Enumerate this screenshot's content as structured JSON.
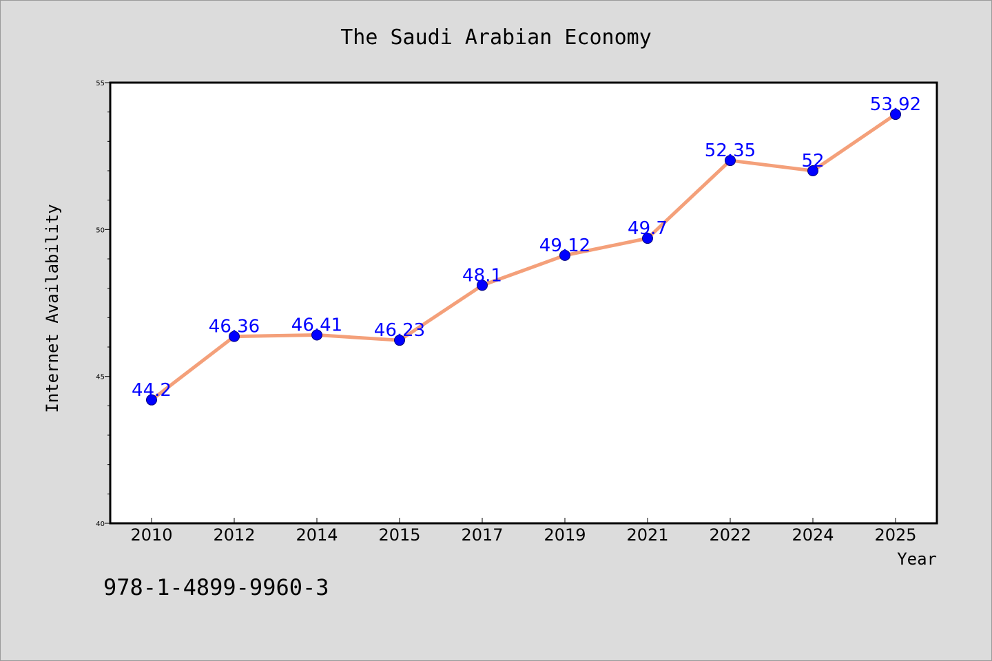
{
  "chart_data": {
    "type": "line",
    "title": "The Saudi Arabian Economy",
    "xlabel": "Year",
    "ylabel": "Internet Availability",
    "categories": [
      "2010",
      "2012",
      "2014",
      "2015",
      "2017",
      "2019",
      "2021",
      "2022",
      "2024",
      "2025"
    ],
    "series": [
      {
        "values": [
          44.2,
          46.36,
          46.41,
          46.23,
          48.1,
          49.12,
          49.7,
          52.35,
          52,
          53.92
        ],
        "labels": [
          "44.2",
          "46.36",
          "46.41",
          "46.23",
          "48.1",
          "49.12",
          "49.7",
          "52.35",
          "52",
          "53.92"
        ]
      }
    ],
    "ylim": [
      40,
      55
    ],
    "yticks": [
      40,
      45,
      50,
      55
    ],
    "ytick_labels": [
      "40",
      "45",
      "50",
      "55"
    ],
    "grid": false,
    "line_color": "#f4a07a",
    "marker_color": "#0000ff",
    "label_color": "#0000ff"
  },
  "footer": {
    "isbn": "978-1-4899-9960-3"
  }
}
